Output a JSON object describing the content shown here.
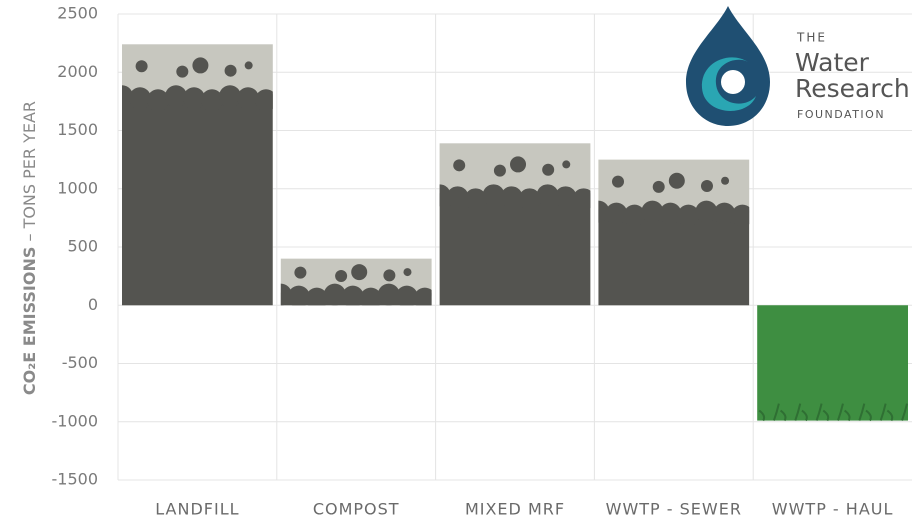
{
  "chart_data": {
    "type": "bar",
    "y_label": {
      "main": "CO₂E EMISSIONS",
      "unit": "– TONS PER YEAR"
    },
    "categories": [
      "LANDFILL",
      "COMPOST",
      "MIXED MRF",
      "WWTP - SEWER",
      "WWTP - HAUL"
    ],
    "values": [
      2240,
      400,
      1390,
      1250,
      -990
    ],
    "color": "#c7c7bf",
    "negative_color": "#3e8e41",
    "ylim": [
      -1500,
      2500
    ],
    "yticks": [
      -1500,
      -1000,
      -500,
      0,
      500,
      1000,
      1500,
      2000,
      2500
    ],
    "grid": true
  },
  "logo": {
    "lines": [
      "THE",
      "Water",
      "Research",
      "FOUNDATION"
    ]
  }
}
